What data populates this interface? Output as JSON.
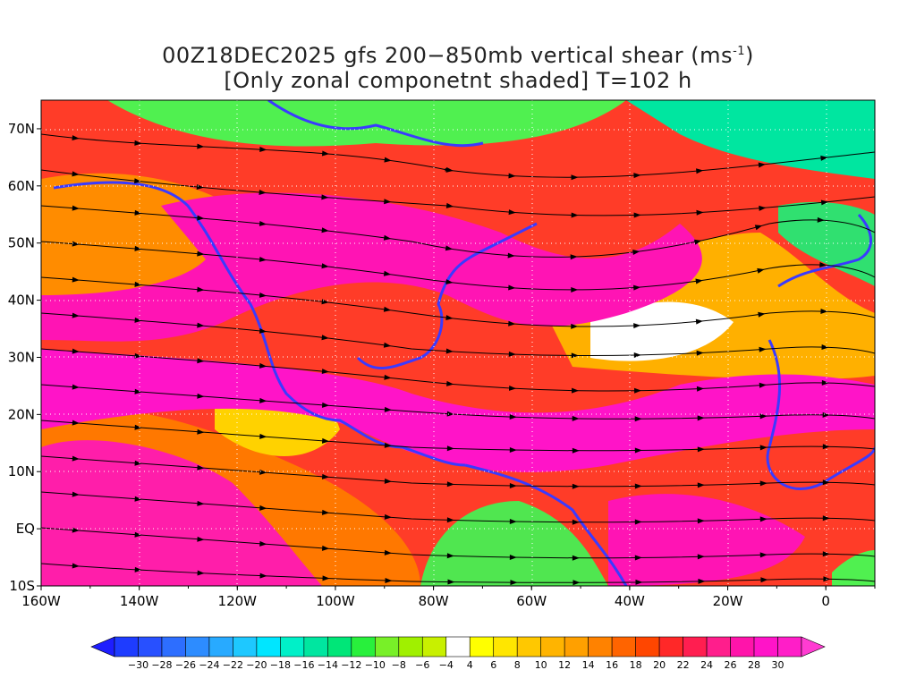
{
  "title": {
    "line1_main": "00Z18DEC2025 gfs 200−850mb vertical shear (ms",
    "line1_sup": "-1",
    "line1_end": ")",
    "line2": "[Only zonal componetnt shaded] T=102 h"
  },
  "map": {
    "lon_range": [
      -160,
      10
    ],
    "lat_range": [
      -10,
      75
    ],
    "lon_labels": [
      "160W",
      "140W",
      "120W",
      "100W",
      "80W",
      "60W",
      "40W",
      "20W",
      "0"
    ],
    "lat_labels": [
      "10S",
      "EQ",
      "10N",
      "20N",
      "30N",
      "40N",
      "50N",
      "60N",
      "70N"
    ]
  },
  "colorbar": {
    "labels": [
      "−30",
      "−28",
      "−26",
      "−24",
      "−22",
      "−20",
      "−18",
      "−16",
      "−14",
      "−12",
      "−10",
      "−8",
      "−6",
      "−4",
      "4",
      "6",
      "8",
      "10",
      "12",
      "14",
      "16",
      "18",
      "20",
      "22",
      "24",
      "26",
      "28",
      "30"
    ],
    "colors": [
      "#1e3cff",
      "#2850ff",
      "#2d6eff",
      "#2d8cff",
      "#28aaff",
      "#1ec8ff",
      "#00e6ff",
      "#00f0c8",
      "#00e6a0",
      "#00e678",
      "#28f03c",
      "#78f028",
      "#a0f000",
      "#c8f000",
      "#ffffff",
      "#ffff00",
      "#ffe600",
      "#ffc800",
      "#ffb400",
      "#ffa000",
      "#ff8200",
      "#ff6400",
      "#ff4600",
      "#ff2828",
      "#ff1e50",
      "#ff1e8c",
      "#ff14aa",
      "#ff14c8",
      "#ff1ec8"
    ],
    "below_color": "#1e1eff",
    "above_color": "#ff3cd2"
  }
}
